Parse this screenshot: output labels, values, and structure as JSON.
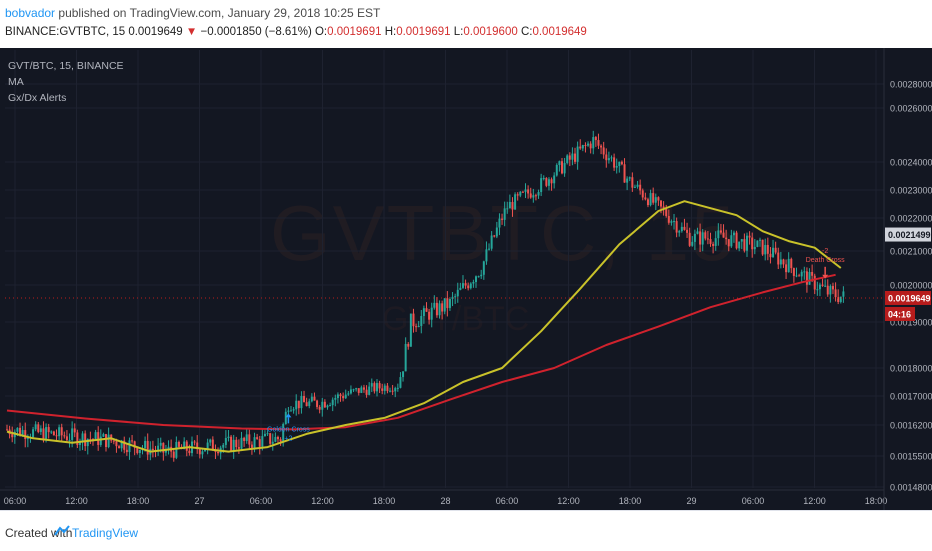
{
  "header": {
    "author": "bobvador",
    "published_text": "published on TradingView.com, January 29, 2018 10:25 EST",
    "symbol_line": "BINANCE:GVTBTC, 15",
    "last": "0.0019649",
    "change_arrow": "▼",
    "change": "−0.0001850 (−8.61%)",
    "o_label": "O:",
    "o": "0.0019691",
    "h_label": "H:",
    "h": "0.0019691",
    "l_label": "L:",
    "l": "0.0019600",
    "c_label": "C:",
    "c": "0.0019649"
  },
  "legend": {
    "symbol": "GVT/BTC, 15, BINANCE",
    "indicator1": "MA",
    "indicator2": "Gx/Dx Alerts"
  },
  "watermark": {
    "big": "GVTBTC, 15",
    "small": "GVT/BTC"
  },
  "footer": {
    "created": "Created with",
    "brand": "TradingView"
  },
  "colors": {
    "background": "#131722",
    "up": "#26a69a",
    "down": "#ef5350",
    "ma_fast": "#c9c22a",
    "ma_slow": "#d0222d",
    "golden_cross": "#2196f3",
    "death_cross": "#ef5350"
  },
  "chart_data": {
    "type": "candlestick",
    "y_ticks": [
      "0.0028000",
      "0.0026000",
      "0.0024000",
      "0.0023000",
      "0.0022000",
      "0.0021000",
      "0.0020000",
      "0.0019000",
      "0.0018000",
      "0.0017000",
      "0.0016200",
      "0.0015500",
      "0.0014800"
    ],
    "x_ticks": [
      "06:00",
      "12:00",
      "18:00",
      "27",
      "06:00",
      "12:00",
      "18:00",
      "28",
      "06:00",
      "12:00",
      "18:00",
      "29",
      "06:00",
      "12:00",
      "18:00"
    ],
    "price_labels": [
      {
        "text": "0.0021499",
        "value": 0.0021499,
        "style": "gray"
      },
      {
        "text": "0.0019649",
        "value": 0.0019649,
        "style": "red"
      },
      {
        "text": "04:16",
        "style": "red-timer"
      }
    ],
    "ma_fast": [
      [
        0,
        0.001605
      ],
      [
        10,
        0.00159
      ],
      [
        25,
        0.00158
      ],
      [
        40,
        0.00159
      ],
      [
        55,
        0.00156
      ],
      [
        70,
        0.00157
      ],
      [
        85,
        0.00156
      ],
      [
        100,
        0.00157
      ],
      [
        115,
        0.0016
      ],
      [
        130,
        0.00162
      ],
      [
        145,
        0.00164
      ],
      [
        160,
        0.00168
      ],
      [
        175,
        0.00175
      ],
      [
        190,
        0.0018
      ],
      [
        205,
        0.00188
      ],
      [
        220,
        0.00199
      ],
      [
        235,
        0.00212
      ],
      [
        250,
        0.002225
      ],
      [
        260,
        0.00226
      ],
      [
        270,
        0.002235
      ],
      [
        280,
        0.00221
      ],
      [
        290,
        0.00216
      ],
      [
        300,
        0.00213
      ],
      [
        310,
        0.00211
      ],
      [
        320,
        0.00205
      ]
    ],
    "ma_slow": [
      [
        0,
        0.00166
      ],
      [
        30,
        0.001638
      ],
      [
        60,
        0.00162
      ],
      [
        90,
        0.001612
      ],
      [
        110,
        0.00161
      ],
      [
        130,
        0.001615
      ],
      [
        150,
        0.00164
      ],
      [
        170,
        0.00169
      ],
      [
        190,
        0.00175
      ],
      [
        210,
        0.0018
      ],
      [
        230,
        0.00185
      ],
      [
        250,
        0.00189
      ],
      [
        270,
        0.00194
      ],
      [
        290,
        0.00198
      ],
      [
        305,
        0.002008
      ],
      [
        318,
        0.00203
      ]
    ],
    "signals": [
      {
        "label": "Golden Cross",
        "count_label": "+2",
        "type": "golden",
        "bar": 108
      },
      {
        "label": "Death Cross",
        "count_label": "-2",
        "type": "death",
        "bar": 314
      }
    ]
  }
}
